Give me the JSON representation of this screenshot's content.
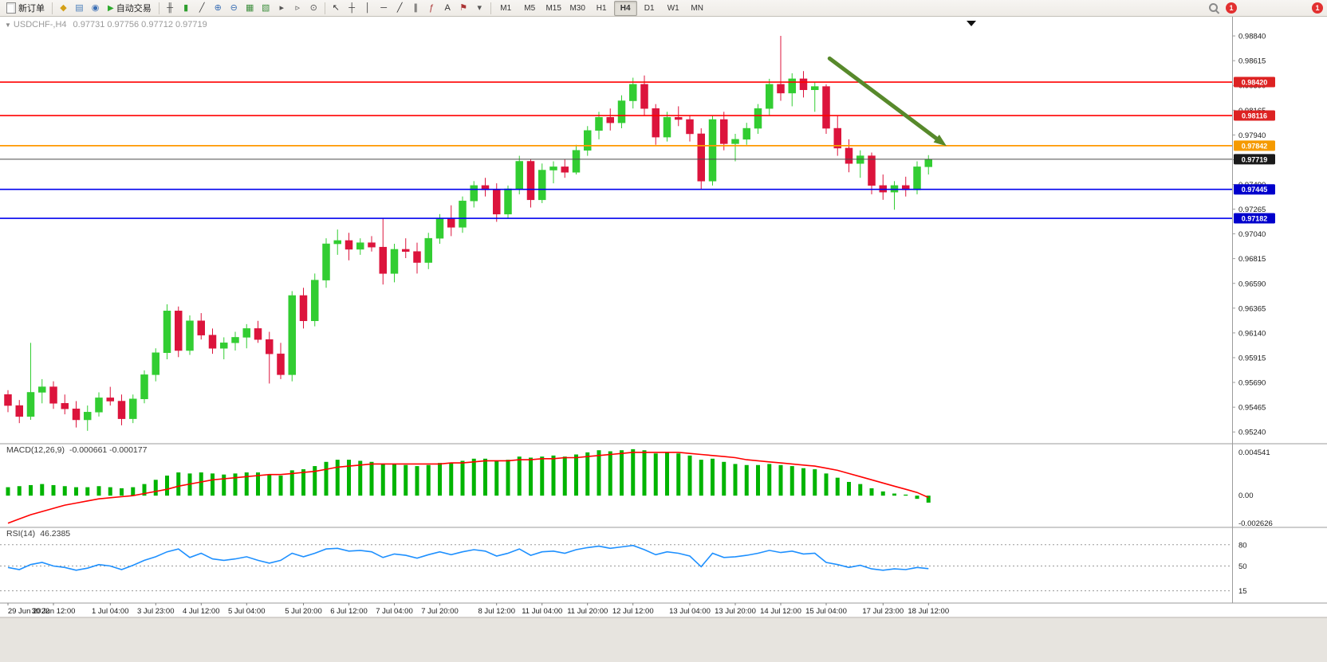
{
  "toolbar": {
    "new_order_label": "新订单",
    "autotrading_label": "自动交易",
    "left_icons": [
      {
        "name": "market-watch-icon",
        "glyph": "◆",
        "color": "#d4a017"
      },
      {
        "name": "data-window-icon",
        "glyph": "▤",
        "color": "#4a7ebb"
      },
      {
        "name": "navigator-icon",
        "glyph": "◉",
        "color": "#3b6fb5"
      }
    ],
    "chart_icons": [
      {
        "name": "bar-chart-icon",
        "glyph": "╫",
        "color": "#444444"
      },
      {
        "name": "candlestick-icon",
        "glyph": "▮",
        "color": "#2e9e2e"
      },
      {
        "name": "line-chart-icon",
        "glyph": "╱",
        "color": "#444444"
      },
      {
        "name": "zoom-in-icon",
        "glyph": "⊕",
        "color": "#3b6fb5"
      },
      {
        "name": "zoom-out-icon",
        "glyph": "⊖",
        "color": "#3b6fb5"
      },
      {
        "name": "tile-windows-icon",
        "glyph": "▦",
        "color": "#3f8f3f"
      },
      {
        "name": "new-chart-icon",
        "glyph": "▧",
        "color": "#3f8f3f"
      },
      {
        "name": "auto-scroll-icon",
        "glyph": "▸",
        "color": "#555555"
      },
      {
        "name": "chart-shift-icon",
        "glyph": "▹",
        "color": "#555555"
      },
      {
        "name": "period-converter-icon",
        "glyph": "⊙",
        "color": "#555555"
      }
    ],
    "drawing_icons": [
      {
        "name": "cursor-icon",
        "glyph": "↖",
        "color": "#333333"
      },
      {
        "name": "crosshair-icon",
        "glyph": "┼",
        "color": "#333333"
      },
      {
        "name": "vertical-line-icon",
        "glyph": "│",
        "color": "#333333"
      },
      {
        "name": "horizontal-line-icon",
        "glyph": "─",
        "color": "#333333"
      },
      {
        "name": "trendline-icon",
        "glyph": "╱",
        "color": "#333333"
      },
      {
        "name": "channel-icon",
        "glyph": "∥",
        "color": "#333333"
      },
      {
        "name": "fibonacci-icon",
        "glyph": "ƒ",
        "color": "#aa3333"
      },
      {
        "name": "text-icon",
        "glyph": "A",
        "color": "#333333"
      },
      {
        "name": "label-icon",
        "glyph": "⚑",
        "color": "#aa3333"
      },
      {
        "name": "shapes-dropdown-icon",
        "glyph": "▾",
        "color": "#555555"
      }
    ],
    "timeframes": [
      "M1",
      "M5",
      "M15",
      "M30",
      "H1",
      "H4",
      "D1",
      "W1",
      "MN"
    ],
    "active_timeframe": "H4",
    "notification_badge": "1"
  },
  "chart_header": {
    "collapse_icon": "▼",
    "symbol_period": "USDCHF-,H4",
    "ohlc": "0.97731 0.97756 0.97712 0.97719"
  },
  "chart_data": {
    "type": "candlestick",
    "symbol": "USDCHF",
    "timeframe": "H4",
    "ylim": [
      0.9514,
      0.99007
    ],
    "bull_color": "#32cd32",
    "bear_color": "#dc143c",
    "price_ticks": [
      "0.98840",
      "0.98615",
      "0.98390",
      "0.98165",
      "0.97940",
      "0.97715",
      "0.97490",
      "0.97265",
      "0.97040",
      "0.96815",
      "0.96590",
      "0.96365",
      "0.96140",
      "0.95915",
      "0.95690",
      "0.95465",
      "0.95240"
    ],
    "x_labels": [
      "29 Jun 2022",
      "30 Jun 12:00",
      "1 Jul 04:00",
      "3 Jul 23:00",
      "4 Jul 12:00",
      "5 Jul 04:00",
      "5 Jul 20:00",
      "6 Jul 12:00",
      "7 Jul 04:00",
      "7 Jul 20:00",
      "8 Jul 12:00",
      "11 Jul 04:00",
      "11 Jul 20:00",
      "12 Jul 12:00",
      "13 Jul 04:00",
      "13 Jul 20:00",
      "14 Jul 12:00",
      "15 Jul 04:00",
      "17 Jul 23:00",
      "18 Jul 12:00"
    ],
    "candles": [
      [
        0.9558,
        0.9562,
        0.9542,
        0.9548
      ],
      [
        0.9548,
        0.9553,
        0.9532,
        0.9538
      ],
      [
        0.9538,
        0.9605,
        0.9535,
        0.956
      ],
      [
        0.956,
        0.9572,
        0.955,
        0.9565
      ],
      [
        0.9565,
        0.957,
        0.9545,
        0.955
      ],
      [
        0.955,
        0.9558,
        0.954,
        0.9545
      ],
      [
        0.9545,
        0.9552,
        0.9528,
        0.9535
      ],
      [
        0.9535,
        0.9548,
        0.9525,
        0.9542
      ],
      [
        0.9542,
        0.956,
        0.9538,
        0.9555
      ],
      [
        0.9555,
        0.9565,
        0.9548,
        0.9552
      ],
      [
        0.9552,
        0.9558,
        0.953,
        0.9536
      ],
      [
        0.9536,
        0.9558,
        0.9532,
        0.9554
      ],
      [
        0.9554,
        0.958,
        0.955,
        0.9576
      ],
      [
        0.9576,
        0.96,
        0.957,
        0.9596
      ],
      [
        0.9596,
        0.964,
        0.959,
        0.9634
      ],
      [
        0.9634,
        0.9638,
        0.9592,
        0.9598
      ],
      [
        0.9598,
        0.963,
        0.9594,
        0.9625
      ],
      [
        0.9625,
        0.9632,
        0.9608,
        0.9612
      ],
      [
        0.9612,
        0.9618,
        0.9595,
        0.96
      ],
      [
        0.96,
        0.961,
        0.959,
        0.9605
      ],
      [
        0.9605,
        0.9615,
        0.9598,
        0.961
      ],
      [
        0.961,
        0.9622,
        0.96,
        0.9618
      ],
      [
        0.9618,
        0.9625,
        0.9605,
        0.9608
      ],
      [
        0.9608,
        0.9615,
        0.9568,
        0.9595
      ],
      [
        0.9595,
        0.9605,
        0.9572,
        0.9576
      ],
      [
        0.9576,
        0.9652,
        0.957,
        0.9648
      ],
      [
        0.9648,
        0.9655,
        0.9618,
        0.9625
      ],
      [
        0.9625,
        0.9668,
        0.962,
        0.9662
      ],
      [
        0.9662,
        0.97,
        0.9655,
        0.9695
      ],
      [
        0.9695,
        0.9708,
        0.9685,
        0.9698
      ],
      [
        0.9698,
        0.9705,
        0.968,
        0.969
      ],
      [
        0.969,
        0.97,
        0.9685,
        0.9696
      ],
      [
        0.9696,
        0.9702,
        0.9688,
        0.9692
      ],
      [
        0.9692,
        0.9718,
        0.9658,
        0.9668
      ],
      [
        0.9668,
        0.9695,
        0.966,
        0.969
      ],
      [
        0.969,
        0.97,
        0.9682,
        0.9688
      ],
      [
        0.9688,
        0.9696,
        0.9668,
        0.9678
      ],
      [
        0.9678,
        0.9705,
        0.9672,
        0.97
      ],
      [
        0.97,
        0.9722,
        0.9695,
        0.9718
      ],
      [
        0.9718,
        0.973,
        0.9702,
        0.971
      ],
      [
        0.971,
        0.9738,
        0.9705,
        0.9734
      ],
      [
        0.9734,
        0.9752,
        0.9728,
        0.9748
      ],
      [
        0.9748,
        0.9755,
        0.9738,
        0.9744
      ],
      [
        0.9744,
        0.975,
        0.9715,
        0.9722
      ],
      [
        0.9722,
        0.9748,
        0.9718,
        0.9745
      ],
      [
        0.9745,
        0.9775,
        0.974,
        0.977
      ],
      [
        0.977,
        0.9772,
        0.9728,
        0.9735
      ],
      [
        0.9735,
        0.9768,
        0.9732,
        0.9762
      ],
      [
        0.9762,
        0.977,
        0.975,
        0.9765
      ],
      [
        0.9765,
        0.9772,
        0.9755,
        0.976
      ],
      [
        0.976,
        0.9785,
        0.9758,
        0.978
      ],
      [
        0.978,
        0.9802,
        0.9775,
        0.9798
      ],
      [
        0.9798,
        0.9815,
        0.979,
        0.981
      ],
      [
        0.981,
        0.9818,
        0.9798,
        0.9805
      ],
      [
        0.9805,
        0.983,
        0.98,
        0.9825
      ],
      [
        0.9825,
        0.9846,
        0.9818,
        0.984
      ],
      [
        0.984,
        0.9848,
        0.9812,
        0.9818
      ],
      [
        0.9818,
        0.9822,
        0.9785,
        0.9792
      ],
      [
        0.9792,
        0.9815,
        0.9788,
        0.981
      ],
      [
        0.981,
        0.982,
        0.9802,
        0.9808
      ],
      [
        0.9808,
        0.9812,
        0.9788,
        0.9795
      ],
      [
        0.9795,
        0.98,
        0.9745,
        0.9752
      ],
      [
        0.9752,
        0.9812,
        0.9748,
        0.9808
      ],
      [
        0.9808,
        0.9815,
        0.978,
        0.9786
      ],
      [
        0.9786,
        0.9795,
        0.977,
        0.979
      ],
      [
        0.979,
        0.9805,
        0.9785,
        0.98
      ],
      [
        0.98,
        0.9822,
        0.9795,
        0.9818
      ],
      [
        0.9818,
        0.9845,
        0.9812,
        0.984
      ],
      [
        0.984,
        0.9884,
        0.9825,
        0.9832
      ],
      [
        0.9832,
        0.985,
        0.982,
        0.9845
      ],
      [
        0.9845,
        0.9852,
        0.9828,
        0.9835
      ],
      [
        0.9835,
        0.9842,
        0.9815,
        0.9838
      ],
      [
        0.9838,
        0.984,
        0.9795,
        0.98
      ],
      [
        0.98,
        0.9812,
        0.9775,
        0.9782
      ],
      [
        0.9782,
        0.979,
        0.976,
        0.9768
      ],
      [
        0.9768,
        0.978,
        0.9755,
        0.9775
      ],
      [
        0.9775,
        0.9778,
        0.974,
        0.9748
      ],
      [
        0.9748,
        0.9758,
        0.9735,
        0.9742
      ],
      [
        0.9742,
        0.9752,
        0.9726,
        0.9748
      ],
      [
        0.9748,
        0.9756,
        0.9738,
        0.9744
      ],
      [
        0.9744,
        0.977,
        0.974,
        0.9765
      ],
      [
        0.9765,
        0.97756,
        0.9758,
        0.97719
      ]
    ],
    "hlines": [
      {
        "price": 0.9842,
        "color": "#ff0000",
        "width": 1.6,
        "label": "0.98420",
        "badge_color": "#dd2222"
      },
      {
        "price": 0.98116,
        "color": "#ff0000",
        "width": 1.6,
        "label": "0.98116",
        "badge_color": "#dd2222"
      },
      {
        "price": 0.97842,
        "color": "#ff9900",
        "width": 1.8,
        "label": "0.97842",
        "badge_color": "#f59a00"
      },
      {
        "price": 0.97719,
        "color": "#4a4a4a",
        "width": 1.0,
        "label": "0.97719",
        "badge_color": "#1a1a1a"
      },
      {
        "price": 0.97445,
        "color": "#0000ee",
        "width": 1.6,
        "label": "0.97445",
        "badge_color": "#0000cc"
      },
      {
        "price": 0.97182,
        "color": "#0000ee",
        "width": 1.6,
        "label": "0.97182",
        "badge_color": "#0000cc"
      }
    ],
    "arrow": {
      "from_bar": 72.3,
      "from_price": 0.98635,
      "to_bar": 82.6,
      "to_price": 0.97838,
      "color": "#57892b",
      "width": 5
    },
    "macd": {
      "name": "MACD(12,26,9)",
      "values_text": "-0.000661 -0.000177",
      "ylim": [
        -0.002626,
        0.004541
      ],
      "scale_labels": [
        {
          "text": "0.004541",
          "value": 0.004541
        },
        {
          "text": "0.00",
          "value": 0
        },
        {
          "text": "-0.002626",
          "value": -0.002626
        }
      ],
      "hist_color": "#00b400",
      "signal_color": "#ff0000",
      "hist": [
        0.0008,
        0.0009,
        0.001,
        0.0011,
        0.001,
        0.0009,
        0.0008,
        0.0008,
        0.0009,
        0.0008,
        0.0007,
        0.0008,
        0.0011,
        0.0015,
        0.0019,
        0.0022,
        0.0021,
        0.0022,
        0.0021,
        0.002,
        0.0021,
        0.0022,
        0.0022,
        0.002,
        0.0019,
        0.0024,
        0.0025,
        0.0028,
        0.0032,
        0.0034,
        0.0034,
        0.0033,
        0.0032,
        0.003,
        0.003,
        0.0029,
        0.0028,
        0.0029,
        0.0031,
        0.0031,
        0.0033,
        0.0035,
        0.0035,
        0.0033,
        0.0034,
        0.0037,
        0.0036,
        0.0037,
        0.0038,
        0.0037,
        0.0039,
        0.0041,
        0.0043,
        0.0042,
        0.0043,
        0.0044,
        0.0043,
        0.004,
        0.0041,
        0.004,
        0.0038,
        0.0034,
        0.0035,
        0.0032,
        0.003,
        0.0029,
        0.0029,
        0.003,
        0.0029,
        0.0028,
        0.0026,
        0.0025,
        0.0021,
        0.0017,
        0.0013,
        0.0011,
        0.0007,
        0.0004,
        0.0002,
        0.0001,
        -0.0003,
        -0.00066
      ],
      "signal": [
        -0.0026,
        -0.0022,
        -0.0018,
        -0.0015,
        -0.0012,
        -0.0009,
        -0.0007,
        -0.0005,
        -0.0003,
        -0.0002,
        -0.0001,
        0.0,
        0.0002,
        0.0004,
        0.0006,
        0.0009,
        0.0011,
        0.0013,
        0.0015,
        0.0016,
        0.0017,
        0.0018,
        0.0019,
        0.002,
        0.002,
        0.0021,
        0.0022,
        0.0023,
        0.0025,
        0.0027,
        0.0028,
        0.0029,
        0.003,
        0.003,
        0.003,
        0.003,
        0.003,
        0.003,
        0.003,
        0.0031,
        0.0031,
        0.0032,
        0.0033,
        0.0033,
        0.0033,
        0.0034,
        0.0034,
        0.0035,
        0.0035,
        0.0036,
        0.0036,
        0.0037,
        0.0038,
        0.0039,
        0.004,
        0.0041,
        0.0041,
        0.0041,
        0.0041,
        0.0041,
        0.004,
        0.0039,
        0.0038,
        0.0037,
        0.0036,
        0.0034,
        0.0033,
        0.0032,
        0.0031,
        0.003,
        0.0029,
        0.0028,
        0.0026,
        0.0024,
        0.0021,
        0.0018,
        0.0015,
        0.0012,
        0.0009,
        0.0006,
        0.0003,
        -0.000177
      ]
    },
    "rsi": {
      "name": "RSI(14)",
      "value_text": "46.2385",
      "ylim": [
        0,
        100
      ],
      "levels": [
        {
          "text": "80",
          "value": 80
        },
        {
          "text": "50",
          "value": 50
        },
        {
          "text": "15",
          "value": 15
        }
      ],
      "color": "#1e90ff",
      "values": [
        48,
        45,
        52,
        55,
        50,
        48,
        44,
        47,
        52,
        50,
        45,
        51,
        58,
        63,
        70,
        74,
        62,
        68,
        60,
        58,
        60,
        63,
        58,
        54,
        58,
        68,
        63,
        68,
        74,
        75,
        71,
        72,
        70,
        62,
        67,
        65,
        61,
        66,
        70,
        66,
        70,
        73,
        71,
        64,
        68,
        74,
        65,
        70,
        71,
        68,
        73,
        76,
        78,
        75,
        77,
        79,
        73,
        66,
        70,
        68,
        64,
        49,
        68,
        62,
        63,
        65,
        68,
        72,
        69,
        71,
        67,
        68,
        55,
        52,
        48,
        51,
        46,
        44,
        46,
        45,
        48,
        46.24
      ]
    }
  }
}
